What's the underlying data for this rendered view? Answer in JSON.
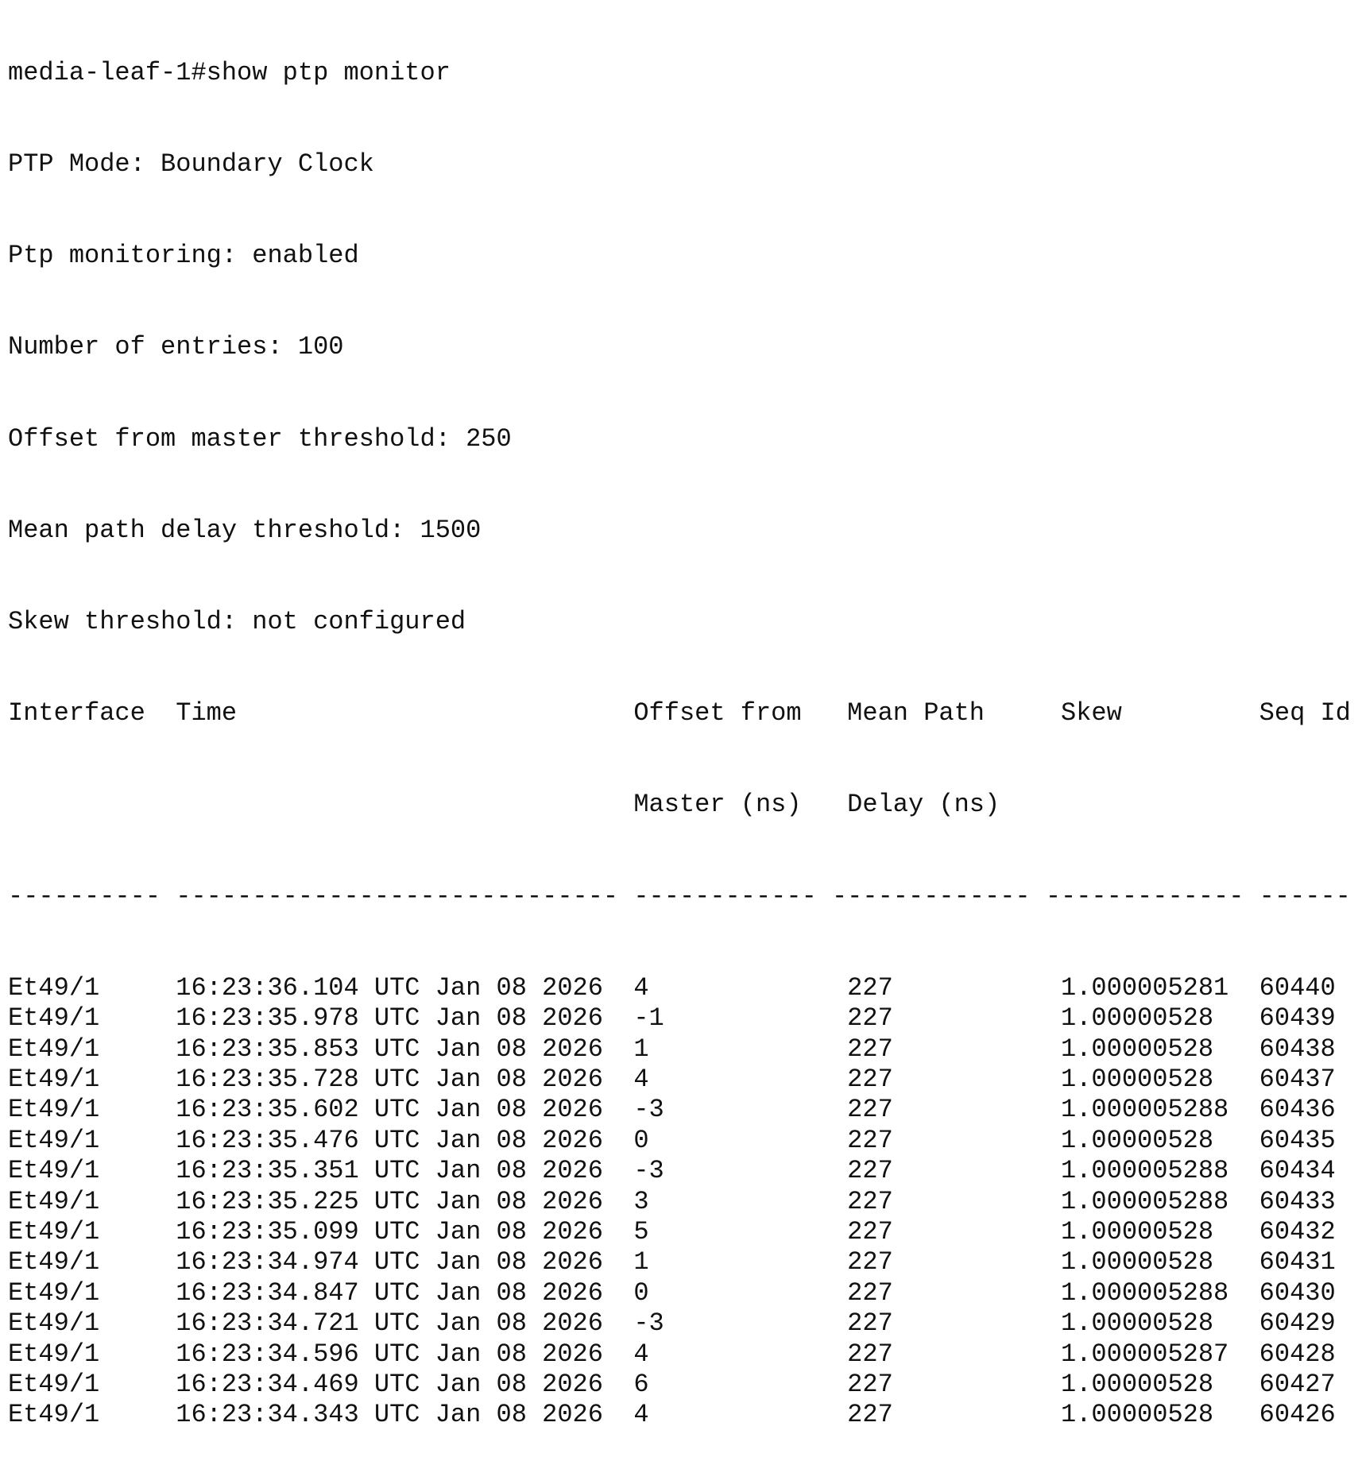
{
  "prompt_line": "media-leaf-1#show ptp monitor",
  "info": [
    "PTP Mode: Boundary Clock",
    "Ptp monitoring: enabled",
    "Number of entries: 100",
    "Offset from master threshold: 250",
    "Mean path delay threshold: 1500",
    "Skew threshold: not configured"
  ],
  "table": {
    "headers_line1": [
      "Interface",
      "Time",
      "Offset from",
      "Mean Path",
      "Skew",
      "Seq Id"
    ],
    "headers_line2": [
      "",
      "",
      "Master (ns)",
      "Delay (ns)",
      "",
      ""
    ],
    "separators": [
      "----------",
      "-----------------------------",
      "------------",
      "-------------",
      "-------------",
      "------"
    ],
    "rows": [
      [
        "Et49/1",
        "16:23:36.104 UTC Jan 08 2026",
        "4",
        "227",
        "1.000005281",
        "60440"
      ],
      [
        "Et49/1",
        "16:23:35.978 UTC Jan 08 2026",
        "-1",
        "227",
        "1.00000528",
        "60439"
      ],
      [
        "Et49/1",
        "16:23:35.853 UTC Jan 08 2026",
        "1",
        "227",
        "1.00000528",
        "60438"
      ],
      [
        "Et49/1",
        "16:23:35.728 UTC Jan 08 2026",
        "4",
        "227",
        "1.00000528",
        "60437"
      ],
      [
        "Et49/1",
        "16:23:35.602 UTC Jan 08 2026",
        "-3",
        "227",
        "1.000005288",
        "60436"
      ],
      [
        "Et49/1",
        "16:23:35.476 UTC Jan 08 2026",
        "0",
        "227",
        "1.00000528",
        "60435"
      ],
      [
        "Et49/1",
        "16:23:35.351 UTC Jan 08 2026",
        "-3",
        "227",
        "1.000005288",
        "60434"
      ],
      [
        "Et49/1",
        "16:23:35.225 UTC Jan 08 2026",
        "3",
        "227",
        "1.000005288",
        "60433"
      ],
      [
        "Et49/1",
        "16:23:35.099 UTC Jan 08 2026",
        "5",
        "227",
        "1.00000528",
        "60432"
      ],
      [
        "Et49/1",
        "16:23:34.974 UTC Jan 08 2026",
        "1",
        "227",
        "1.00000528",
        "60431"
      ],
      [
        "Et49/1",
        "16:23:34.847 UTC Jan 08 2026",
        "0",
        "227",
        "1.000005288",
        "60430"
      ],
      [
        "Et49/1",
        "16:23:34.721 UTC Jan 08 2026",
        "-3",
        "227",
        "1.00000528",
        "60429"
      ],
      [
        "Et49/1",
        "16:23:34.596 UTC Jan 08 2026",
        "4",
        "227",
        "1.000005287",
        "60428"
      ],
      [
        "Et49/1",
        "16:23:34.469 UTC Jan 08 2026",
        "6",
        "227",
        "1.00000528",
        "60427"
      ],
      [
        "Et49/1",
        "16:23:34.343 UTC Jan 08 2026",
        "4",
        "227",
        "1.00000528",
        "60426"
      ]
    ]
  }
}
